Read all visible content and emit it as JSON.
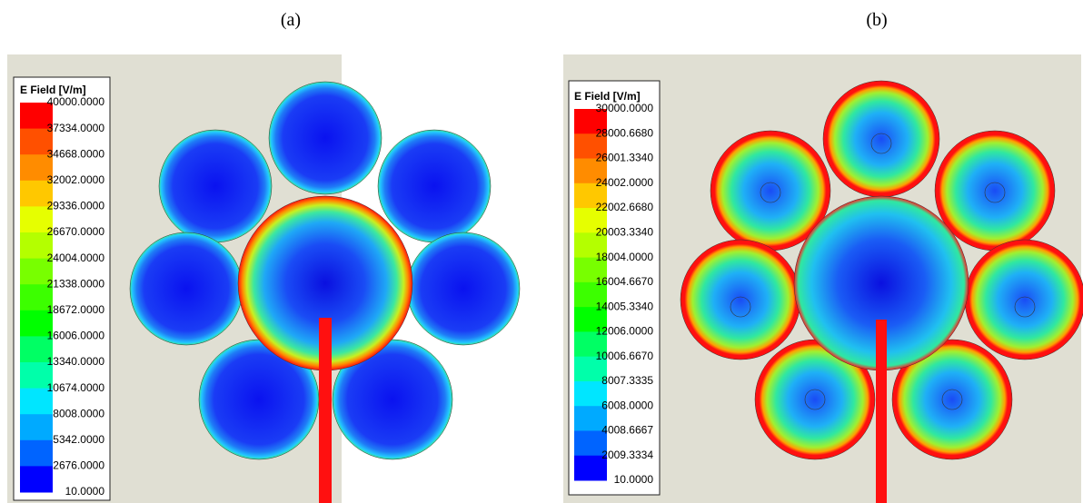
{
  "panels": [
    {
      "label": "(a)",
      "legend": {
        "title": "E Field [V/m]",
        "levels": [
          "40000.0000",
          "37334.0000",
          "34668.0000",
          "32002.0000",
          "29336.0000",
          "26670.0000",
          "24004.0000",
          "21338.0000",
          "18672.0000",
          "16006.0000",
          "13340.0000",
          "10674.0000",
          "8008.0000",
          "5342.0000",
          "2676.0000",
          "10.0000"
        ]
      }
    },
    {
      "label": "(b)",
      "legend": {
        "title": "E Field [V/m]",
        "levels": [
          "30000.0000",
          "28000.6680",
          "26001.3340",
          "24002.0000",
          "22002.6680",
          "20003.3340",
          "18004.0000",
          "16004.6670",
          "14005.3340",
          "12006.0000",
          "10006.6670",
          "8007.3335",
          "6008.0000",
          "4008.6667",
          "2009.3334",
          "10.0000"
        ]
      }
    }
  ]
}
